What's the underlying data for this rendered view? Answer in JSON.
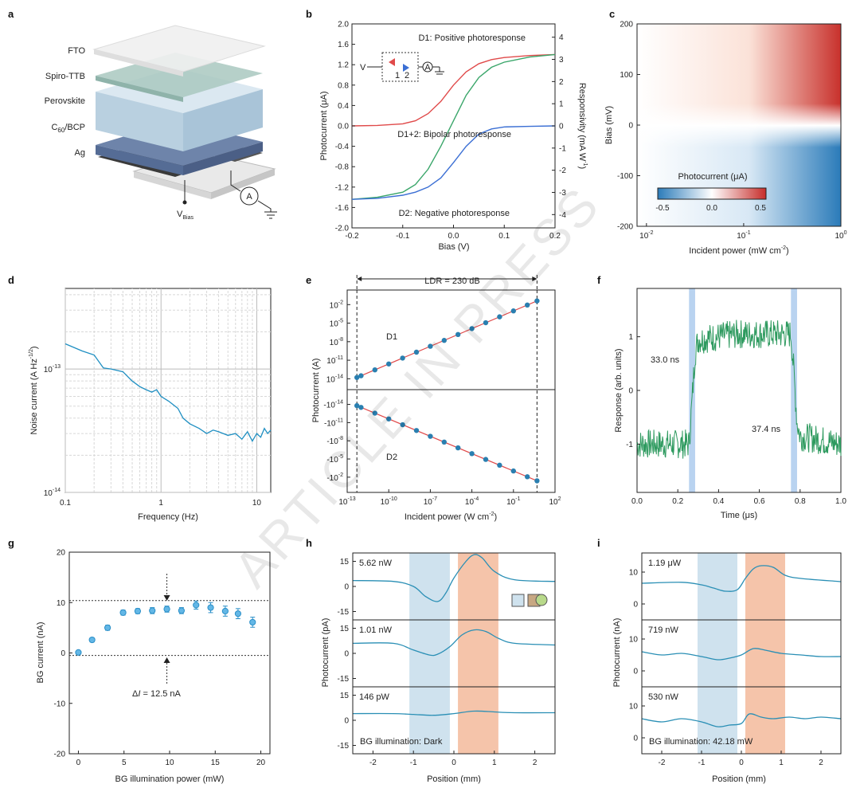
{
  "watermark": "ARTICLE IN PRESS",
  "panels": {
    "a": {
      "label": "a",
      "layers": [
        "FTO",
        "Spiro-TTB",
        "Perovskite",
        "C60/BCP",
        "Ag"
      ],
      "c60_base": "C",
      "c60_sub": "60",
      "c60_rest": "/BCP",
      "vbias_base": "V",
      "vbias_sub": "Bias",
      "ammeter": "A"
    },
    "b": {
      "label": "b",
      "inset_v": "V",
      "inset_a": "A",
      "inset_1": "1",
      "inset_2": "2",
      "sub_letter": "W",
      "sub_power": "-1"
    },
    "c": {
      "label": "c",
      "colorbar_title": "Photocurrent (μA)",
      "colorbar_ticks": [
        "-0.5",
        "0.0",
        "0.5"
      ],
      "x_base": "10",
      "x_exps": [
        "-2",
        "-1",
        "0"
      ],
      "xlabel_main": "Incident power (mW cm",
      "xlabel_sup": "-2",
      "xlabel_end": ")"
    },
    "d": {
      "label": "d",
      "y_base": "10",
      "y_exps": [
        "-13",
        "-14"
      ],
      "ylabel_main": "Noise current (A Hz",
      "ylabel_sup": "-1/2",
      "ylabel_end": ")"
    },
    "e": {
      "label": "e",
      "x_base": "10",
      "x_exps": [
        "-13",
        "-10",
        "-7",
        "-4",
        "-1",
        "2"
      ],
      "y_exps_top": [
        "-2",
        "-5",
        "-8",
        "-11",
        "-14"
      ],
      "y_exps_bot": [
        "-14",
        "-11",
        "-8",
        "-5",
        "-2"
      ],
      "y_neg_prefix": "-10",
      "xlabel_main": "Incident power (W cm",
      "xlabel_sup": "-2",
      "xlabel_end": ")"
    },
    "f": {
      "label": "f"
    },
    "g": {
      "label": "g",
      "delta_prefix": "Δ",
      "delta_var": "I",
      "delta_rest": " = 12.5 nA"
    },
    "h": {
      "label": "h",
      "legend_icon": "shape-legend-icon"
    },
    "i": {
      "label": "i"
    }
  },
  "chart_data": [
    {
      "panel": "b",
      "type": "line",
      "xlabel": "Bias (V)",
      "ylabel": "Photocurrent (μA)",
      "y2label_prefix": "Responsivity (mA ",
      "y2label_suffix": ")",
      "xlim": [
        -0.2,
        0.2
      ],
      "ylim": [
        -2.0,
        2.0
      ],
      "y2lim": [
        -4.6,
        4.6
      ],
      "xticks": [
        "-0.2",
        "-0.1",
        "0.0",
        "0.1",
        "0.2"
      ],
      "yticks": [
        "-2.0",
        "-1.6",
        "-1.2",
        "-0.8",
        "-0.4",
        "0.0",
        "0.4",
        "0.8",
        "1.2",
        "1.6",
        "2.0"
      ],
      "y2ticks": [
        "-4",
        "-3",
        "-2",
        "-1",
        "0",
        "1",
        "2",
        "3",
        "4"
      ],
      "series": [
        {
          "name": "D1: Positive photoresponse",
          "color": "#e04a4a",
          "x": [
            -0.2,
            -0.15,
            -0.1,
            -0.075,
            -0.05,
            -0.025,
            0.0,
            0.025,
            0.05,
            0.075,
            0.1,
            0.15,
            0.2
          ],
          "y": [
            0.0,
            0.01,
            0.04,
            0.1,
            0.24,
            0.48,
            0.8,
            1.06,
            1.22,
            1.3,
            1.34,
            1.38,
            1.4
          ]
        },
        {
          "name": "D1+2: Bipolar photoresponse",
          "color": "#3aa66a",
          "x": [
            -0.2,
            -0.15,
            -0.1,
            -0.075,
            -0.05,
            -0.025,
            0.0,
            0.025,
            0.05,
            0.075,
            0.1,
            0.15,
            0.2
          ],
          "y": [
            -1.44,
            -1.4,
            -1.3,
            -1.15,
            -0.85,
            -0.4,
            0.1,
            0.6,
            0.95,
            1.15,
            1.25,
            1.35,
            1.4
          ]
        },
        {
          "name": "D2: Negative photoresponse",
          "color": "#3b6fd4",
          "x": [
            -0.2,
            -0.15,
            -0.1,
            -0.075,
            -0.05,
            -0.025,
            0.0,
            0.025,
            0.05,
            0.075,
            0.1,
            0.15,
            0.2
          ],
          "y": [
            -1.44,
            -1.42,
            -1.36,
            -1.3,
            -1.2,
            -1.02,
            -0.72,
            -0.4,
            -0.16,
            -0.06,
            -0.02,
            -0.01,
            0.0
          ]
        }
      ]
    },
    {
      "panel": "c",
      "type": "heatmap",
      "xlabel": "Incident power (mW cm-2)",
      "ylabel": "Bias (mV)",
      "xscale": "log",
      "xlim": [
        0.008,
        1.0
      ],
      "ylim": [
        -200,
        200
      ],
      "yticks": [
        "-200",
        "-100",
        "0",
        "100",
        "200"
      ],
      "colorscale": [
        "#2b7bb9",
        "#ffffff",
        "#c62d2a"
      ],
      "zlim": [
        -0.5,
        0.5
      ]
    },
    {
      "panel": "d",
      "type": "line",
      "xlabel": "Frequency (Hz)",
      "xscale": "log",
      "yscale": "log",
      "xlim": [
        0.1,
        14
      ],
      "ylim": [
        1e-14,
        4.5e-13
      ],
      "xticks": [
        "0.1",
        "1",
        "10"
      ],
      "color": "#1f8fc2",
      "x": [
        0.1,
        0.15,
        0.2,
        0.25,
        0.3,
        0.4,
        0.5,
        0.6,
        0.7,
        0.8,
        0.9,
        1.0,
        1.2,
        1.5,
        1.7,
        2.0,
        2.5,
        3.0,
        3.5,
        4.0,
        5.0,
        6.0,
        7.0,
        8.0,
        9.0,
        10.0,
        11.0,
        12.0,
        13.0,
        14.0
      ],
      "y": [
        1.6e-13,
        1.4e-13,
        1.3e-13,
        1.02e-13,
        1e-13,
        9.5e-14,
        8e-14,
        7.2e-14,
        6.8e-14,
        6.5e-14,
        6.8e-14,
        6e-14,
        5.5e-14,
        4.8e-14,
        4e-14,
        3.6e-14,
        3.3e-14,
        3e-14,
        3.2e-14,
        3.1e-14,
        2.9e-14,
        3e-14,
        2.7e-14,
        3.1e-14,
        2.6e-14,
        3e-14,
        2.8e-14,
        3.3e-14,
        3e-14,
        3.2e-14
      ]
    },
    {
      "panel": "e",
      "type": "scatter",
      "xlabel": "Incident power (W cm-2)",
      "ylabel": "Photocurrent (A)",
      "xscale": "log",
      "xlim_log10": [
        -13,
        2
      ],
      "ldr_label": "LDR = 230 dB",
      "series": [
        {
          "name": "D1",
          "x_log10": [
            -12.3,
            -12.0,
            -11.0,
            -10.0,
            -9.0,
            -8.0,
            -7.0,
            -6.0,
            -5.0,
            -4.0,
            -3.0,
            -2.0,
            -1.0,
            0.0,
            0.7
          ],
          "y_log10": [
            -13.8,
            -13.6,
            -12.5,
            -11.4,
            -10.3,
            -9.2,
            -8.1,
            -7.0,
            -5.9,
            -4.8,
            -3.7,
            -2.6,
            -1.6,
            -0.5,
            -1.4
          ]
        },
        {
          "name": "D2",
          "x_log10": [
            -12.3,
            -12.0,
            -11.0,
            -10.0,
            -9.0,
            -8.0,
            -7.0,
            -6.0,
            -5.0,
            -4.0,
            -3.0,
            -2.0,
            -1.0,
            0.0,
            0.7
          ],
          "y_log10": [
            -13.8,
            -13.6,
            -12.5,
            -11.4,
            -10.3,
            -9.2,
            -8.1,
            -7.0,
            -5.9,
            -4.8,
            -3.7,
            -2.6,
            -1.6,
            -0.5,
            -1.4
          ]
        }
      ]
    },
    {
      "panel": "f",
      "type": "line",
      "xlabel": "Time (μs)",
      "ylabel": "Response (arb. units)",
      "xlim": [
        0.0,
        1.0
      ],
      "ylim": [
        -1.9,
        1.9
      ],
      "xticks": [
        "0.0",
        "0.2",
        "0.4",
        "0.6",
        "0.8",
        "1.0"
      ],
      "yticks": [
        "-1",
        "0",
        "1"
      ],
      "color": "#2e9a5f",
      "rise_label": "33.0 ns",
      "fall_label": "37.4 ns",
      "rise_band": [
        0.255,
        0.285
      ],
      "fall_band": [
        0.755,
        0.785
      ],
      "x": [
        0.0,
        0.255,
        0.27,
        0.285,
        0.3,
        0.5,
        0.755,
        0.77,
        0.785,
        0.8,
        1.0
      ],
      "y": [
        -1.0,
        -1.0,
        -0.2,
        0.7,
        0.95,
        1.05,
        1.05,
        0.3,
        -0.6,
        -0.85,
        -1.0
      ]
    },
    {
      "panel": "g",
      "type": "scatter",
      "xlabel": "BG illumination power (mW)",
      "ylabel": "BG current (nA)",
      "xlim": [
        -1,
        21
      ],
      "ylim": [
        -20,
        20
      ],
      "xticks": [
        "0",
        "5",
        "10",
        "15",
        "20"
      ],
      "yticks": [
        "-20",
        "-10",
        "0",
        "10",
        "20"
      ],
      "x": [
        0.0,
        1.5,
        3.2,
        4.9,
        6.5,
        8.1,
        9.7,
        11.3,
        12.9,
        14.5,
        16.1,
        17.5,
        19.1
      ],
      "y": [
        0.1,
        2.6,
        5.0,
        8.0,
        8.3,
        8.4,
        8.7,
        8.4,
        9.5,
        9.0,
        8.3,
        7.8,
        6.1
      ],
      "err": [
        0.3,
        0.4,
        0.5,
        0.5,
        0.5,
        0.6,
        0.6,
        0.6,
        0.8,
        1.0,
        1.0,
        1.0,
        1.0
      ],
      "ref_lines": [
        10.4,
        -0.5
      ]
    },
    {
      "panel": "h",
      "type": "line",
      "xlabel": "Position (mm)",
      "ylabel": "Photocurrent (pA)",
      "xlim": [
        -2.5,
        2.5
      ],
      "xticks": [
        "-2",
        "-1",
        "0",
        "1",
        "2"
      ],
      "sub_yticks": [
        "15",
        "0",
        "-15"
      ],
      "sub_ylim": [
        -20,
        20
      ],
      "blue_band": [
        -1.1,
        -0.1
      ],
      "red_band": [
        0.1,
        1.1
      ],
      "color": "#2a8fb5",
      "bg_note": "BG illumination: Dark",
      "subplots": [
        {
          "label": "5.62 nW",
          "x": [
            -2.5,
            -1.5,
            -1.0,
            -0.7,
            -0.4,
            -0.2,
            0.0,
            0.3,
            0.5,
            0.7,
            1.0,
            1.5,
            2.5
          ],
          "y": [
            3.5,
            3.0,
            0.0,
            -6.0,
            -9.0,
            -4.0,
            5.0,
            15.0,
            19.0,
            17.0,
            9.0,
            4.0,
            3.0
          ]
        },
        {
          "label": "1.01 nW",
          "x": [
            -2.5,
            -1.5,
            -1.0,
            -0.6,
            -0.4,
            -0.1,
            0.2,
            0.5,
            0.8,
            1.1,
            1.5,
            2.5
          ],
          "y": [
            6.0,
            6.0,
            2.0,
            -1.0,
            -0.5,
            4.0,
            11.0,
            14.0,
            13.0,
            9.0,
            6.0,
            5.0
          ]
        },
        {
          "label": "146 pW",
          "x": [
            -2.5,
            -1.5,
            -1.0,
            -0.5,
            0.0,
            0.5,
            1.0,
            1.5,
            2.5
          ],
          "y": [
            4.0,
            4.0,
            3.5,
            3.0,
            4.0,
            5.5,
            5.0,
            4.5,
            4.5
          ]
        }
      ]
    },
    {
      "panel": "i",
      "type": "line",
      "xlabel": "Position (mm)",
      "ylabel": "Photocurrent (nA)",
      "xlim": [
        -2.5,
        2.5
      ],
      "xticks": [
        "-2",
        "-1",
        "0",
        "1",
        "2"
      ],
      "sub_yticks": [
        "10",
        "0"
      ],
      "sub_ylim": [
        -5,
        16
      ],
      "blue_band": [
        -1.1,
        -0.1
      ],
      "red_band": [
        0.1,
        1.1
      ],
      "color": "#2a8fb5",
      "bg_note": "BG illumination: 42.18 mW",
      "subplots": [
        {
          "label": "1.19 μW",
          "x": [
            -2.5,
            -1.5,
            -1.0,
            -0.7,
            -0.4,
            -0.1,
            0.1,
            0.3,
            0.5,
            0.8,
            1.1,
            1.5,
            2.5
          ],
          "y": [
            6.5,
            6.8,
            6.0,
            5.0,
            4.0,
            4.5,
            8.0,
            11.0,
            12.0,
            11.5,
            9.0,
            8.0,
            7.0
          ]
        },
        {
          "label": "719 nW",
          "x": [
            -2.5,
            -2.0,
            -1.5,
            -1.0,
            -0.6,
            -0.3,
            0.0,
            0.3,
            0.6,
            1.0,
            1.5,
            2.0,
            2.5
          ],
          "y": [
            6.0,
            5.0,
            5.5,
            4.5,
            3.5,
            4.0,
            5.0,
            7.0,
            6.5,
            5.5,
            5.0,
            4.5,
            4.5
          ]
        },
        {
          "label": "530 nW",
          "x": [
            -2.5,
            -2.0,
            -1.5,
            -1.0,
            -0.6,
            -0.3,
            0.0,
            0.2,
            0.5,
            0.8,
            1.2,
            1.6,
            2.0,
            2.5
          ],
          "y": [
            6.0,
            5.0,
            6.0,
            5.0,
            3.5,
            4.0,
            4.5,
            7.5,
            6.5,
            6.0,
            6.5,
            6.0,
            6.5,
            6.0
          ]
        }
      ]
    }
  ]
}
